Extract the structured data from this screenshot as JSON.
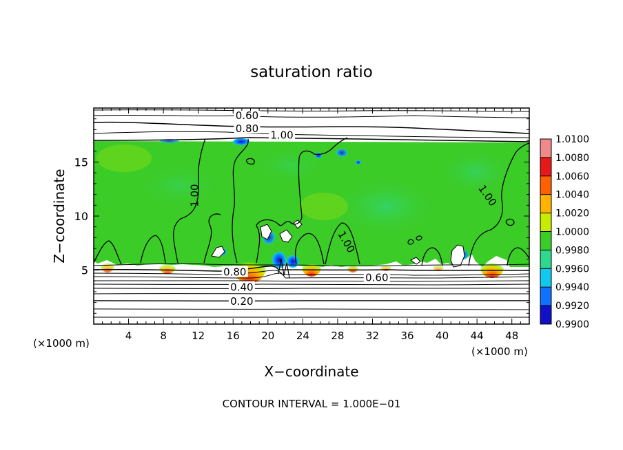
{
  "chart_data": {
    "type": "heatmap",
    "title": "saturation ratio",
    "xlabel": "X−coordinate",
    "ylabel": "Z−coordinate",
    "x_unit_left": "(×1000 m)",
    "x_unit_right": "(×1000 m)",
    "footer": "CONTOUR INTERVAL = 1.000E−01",
    "xlim": [
      0,
      50
    ],
    "ylim": [
      0,
      20
    ],
    "x_ticks": [
      4,
      8,
      12,
      16,
      20,
      24,
      28,
      32,
      36,
      40,
      44,
      48
    ],
    "y_ticks": [
      5,
      10,
      15
    ],
    "contour_labels": [
      {
        "text": "0.60",
        "x": 17.6,
        "y": 19.3
      },
      {
        "text": "0.80",
        "x": 17.6,
        "y": 18.1
      },
      {
        "text": "1.00",
        "x": 21.6,
        "y": 17.5
      },
      {
        "text": "1.00",
        "x": 11.6,
        "y": 11.9
      },
      {
        "text": "1.00",
        "x": 45.2,
        "y": 11.9
      },
      {
        "text": "1.00",
        "x": 29.0,
        "y": 7.6
      },
      {
        "text": "0.80",
        "x": 16.2,
        "y": 4.8
      },
      {
        "text": "0.60",
        "x": 32.5,
        "y": 4.3
      },
      {
        "text": "0.40",
        "x": 17.0,
        "y": 3.4
      },
      {
        "text": "0.20",
        "x": 17.0,
        "y": 2.1
      }
    ],
    "colorbar": {
      "levels": [
        "1.0100",
        "1.0080",
        "1.0060",
        "1.0040",
        "1.0020",
        "1.0000",
        "0.9980",
        "0.9960",
        "0.9940",
        "0.9920",
        "0.9900"
      ],
      "colors": [
        "#f08a8a",
        "#e81818",
        "#ff6000",
        "#ffb400",
        "#c8ec00",
        "#3ccc28",
        "#2ed88c",
        "#10c8f0",
        "#1070ff",
        "#1010c8",
        "#5a1090"
      ]
    }
  }
}
